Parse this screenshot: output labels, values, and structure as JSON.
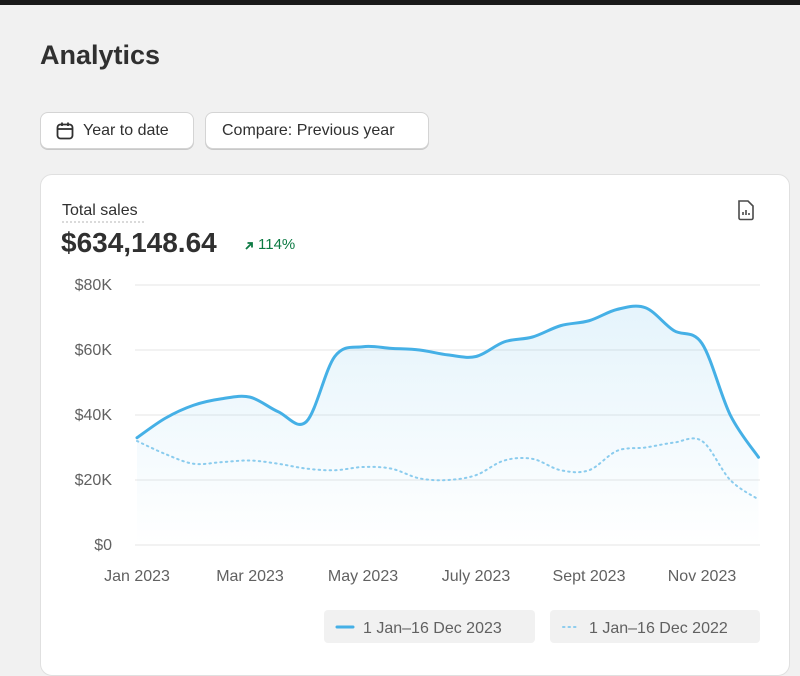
{
  "page": {
    "title": "Analytics",
    "buttons": [
      "Year to date",
      "Compare: Previous year"
    ],
    "metric": {
      "label": "Total sales",
      "value": "$634,148.64",
      "change": "114%"
    }
  },
  "chart_data": {
    "type": "line",
    "categories": [
      "Jan 2023",
      null,
      null,
      null,
      "Mar 2023",
      null,
      null,
      null,
      "May 2023",
      null,
      null,
      null,
      "July 2023",
      null,
      null,
      null,
      "Sept 2023",
      null,
      null,
      null,
      "Nov 2023",
      null,
      null
    ],
    "series": [
      {
        "name": "1 Jan–16 Dec 2023",
        "color": "#45b0e6",
        "style": "solid",
        "values": [
          33000,
          39000,
          43000,
          45000,
          45500,
          41000,
          38000,
          58000,
          61000,
          60500,
          60000,
          58500,
          58000,
          62500,
          64000,
          67500,
          69000,
          72500,
          73000,
          66000,
          62000,
          40000,
          27000
        ]
      },
      {
        "name": "1 Jan–16 Dec 2022",
        "color": "#8ecdee",
        "style": "dotted",
        "values": [
          32000,
          28000,
          25000,
          25500,
          26000,
          25000,
          23500,
          23000,
          24000,
          23500,
          20500,
          20000,
          21500,
          26000,
          26500,
          23000,
          23000,
          29000,
          30000,
          31500,
          32000,
          20000,
          14000
        ]
      }
    ],
    "ylim": [
      0,
      80000
    ],
    "yticks": [
      {
        "value": 0,
        "label": "$0"
      },
      {
        "value": 20000,
        "label": "$20K"
      },
      {
        "value": 40000,
        "label": "$40K"
      },
      {
        "value": 60000,
        "label": "$60K"
      },
      {
        "value": 80000,
        "label": "$80K"
      }
    ],
    "grid": true
  }
}
